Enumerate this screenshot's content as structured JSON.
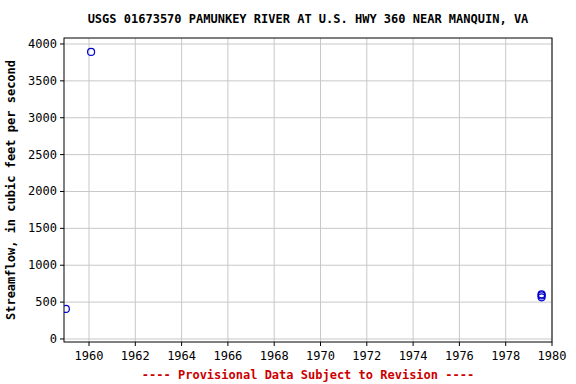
{
  "chart_data": {
    "type": "scatter",
    "title": "USGS 01673570 PAMUNKEY RIVER AT U.S. HWY 360 NEAR MANQUIN, VA",
    "y_label": "Streamflow, in cubic feet per second",
    "footer": "---- Provisional Data Subject to Revision ----",
    "x": [
      1959.0,
      1960.09,
      1979.55,
      1979.55,
      1979.55
    ],
    "values": [
      407,
      3892,
      605,
      590,
      565
    ],
    "color": "#0000cc",
    "marker": "open-circle",
    "xlim": [
      1958.92,
      1980
    ],
    "xticks": [
      1960,
      1962,
      1964,
      1966,
      1968,
      1970,
      1972,
      1974,
      1976,
      1978,
      1980
    ],
    "ylim": [
      -41,
      4081
    ],
    "yticks": [
      0,
      500,
      1000,
      1500,
      2000,
      2500,
      3000,
      3500,
      4000
    ],
    "grid": true
  }
}
